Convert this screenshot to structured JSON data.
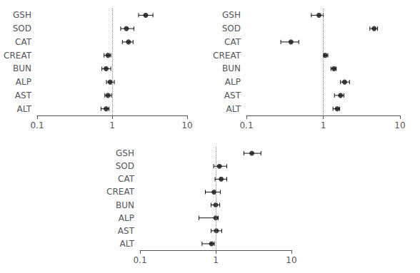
{
  "chart_data": [
    {
      "type": "scatter",
      "orientation": "horizontal",
      "marker": "circle",
      "color": "#111111",
      "categories": [
        "GSH",
        "SOD",
        "CAT",
        "CREAT",
        "BUN",
        "ALP",
        "AST",
        "ALT"
      ],
      "values": [
        2.8,
        1.55,
        1.65,
        0.88,
        0.83,
        0.94,
        0.88,
        0.83
      ],
      "err_minus": [
        0.55,
        0.25,
        0.28,
        0.1,
        0.1,
        0.1,
        0.08,
        0.12
      ],
      "err_plus": [
        0.7,
        0.4,
        0.25,
        0.08,
        0.13,
        0.13,
        0.1,
        0.08
      ],
      "reference_line": 1.0,
      "log": "x",
      "xlim": [
        0.1,
        10
      ],
      "xticks": [
        0.1,
        1,
        10
      ],
      "grid": false
    },
    {
      "type": "scatter",
      "orientation": "horizontal",
      "marker": "circle",
      "color": "#111111",
      "categories": [
        "GSH",
        "SOD",
        "CAT",
        "CREAT",
        "BUN",
        "ALP",
        "AST",
        "ALT"
      ],
      "values": [
        0.88,
        4.6,
        0.38,
        1.06,
        1.38,
        1.9,
        1.68,
        1.52
      ],
      "err_minus": [
        0.18,
        0.55,
        0.1,
        0.05,
        0.12,
        0.22,
        0.28,
        0.18
      ],
      "err_plus": [
        0.12,
        0.5,
        0.1,
        0.09,
        0.1,
        0.3,
        0.18,
        0.12
      ],
      "reference_line": 1.0,
      "log": "x",
      "xlim": [
        0.1,
        10
      ],
      "xticks": [
        0.1,
        1,
        10
      ],
      "grid": false
    },
    {
      "type": "scatter",
      "orientation": "horizontal",
      "marker": "circle",
      "color": "#111111",
      "categories": [
        "GSH",
        "SOD",
        "CAT",
        "CREAT",
        "BUN",
        "ALP",
        "AST",
        "ALT"
      ],
      "values": [
        3.0,
        1.12,
        1.18,
        0.95,
        1.0,
        1.0,
        1.02,
        0.88
      ],
      "err_minus": [
        0.65,
        0.18,
        0.2,
        0.22,
        0.13,
        0.4,
        0.15,
        0.22
      ],
      "err_plus": [
        0.95,
        0.28,
        0.22,
        0.2,
        0.13,
        0.08,
        0.18,
        0.08
      ],
      "reference_line": 1.0,
      "log": "x",
      "xlim": [
        0.1,
        10
      ],
      "xticks": [
        0.1,
        1,
        10
      ],
      "grid": false
    }
  ]
}
